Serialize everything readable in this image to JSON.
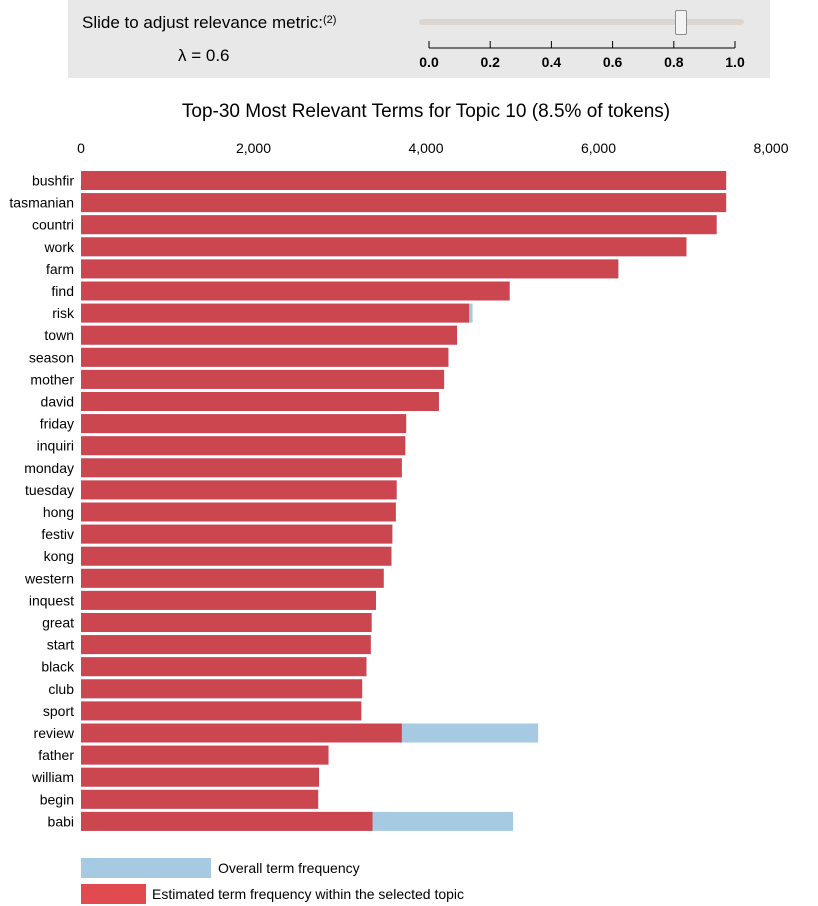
{
  "slider": {
    "label": "Slide to adjust relevance metric:",
    "footnote": "(2)",
    "lambda_text": "λ = 0.6",
    "value": 0.6,
    "min": 0.0,
    "max": 1.0,
    "ticks": [
      "0.0",
      "0.2",
      "0.4",
      "0.6",
      "0.8",
      "1.0"
    ]
  },
  "legend": {
    "overall": "Overall term frequency",
    "topic": "Estimated term frequency within the selected topic"
  },
  "colors": {
    "overall": "#a6cae2",
    "topic": "#cc4650",
    "slider_bg": "#e8e8e8"
  },
  "chart_data": {
    "type": "bar",
    "orientation": "horizontal",
    "stacked": "overlay",
    "title": "Top-30 Most Relevant Terms for Topic 10 (8.5% of tokens)",
    "xlim": [
      0,
      8000
    ],
    "xticks": [
      0,
      2000,
      4000,
      6000,
      8000
    ],
    "xtick_labels": [
      "0",
      "2,000",
      "4,000",
      "6,000",
      "8,000"
    ],
    "categories": [
      "bushfir",
      "tasmanian",
      "countri",
      "work",
      "farm",
      "find",
      "risk",
      "town",
      "season",
      "mother",
      "david",
      "friday",
      "inquiri",
      "monday",
      "tuesday",
      "hong",
      "festiv",
      "kong",
      "western",
      "inquest",
      "great",
      "start",
      "black",
      "club",
      "sport",
      "review",
      "father",
      "william",
      "begin",
      "babi"
    ],
    "series": [
      {
        "name": "Overall term frequency",
        "values": [
          7480,
          7480,
          7370,
          7020,
          6230,
          4970,
          4540,
          4360,
          4260,
          4210,
          4150,
          3770,
          3760,
          3720,
          3660,
          3650,
          3610,
          3600,
          3510,
          3420,
          3370,
          3360,
          3310,
          3260,
          3250,
          5300,
          2870,
          2760,
          2750,
          5010
        ]
      },
      {
        "name": "Estimated term frequency within the selected topic",
        "values": [
          7480,
          7480,
          7370,
          7020,
          6230,
          4970,
          4500,
          4360,
          4260,
          4210,
          4150,
          3770,
          3760,
          3720,
          3660,
          3650,
          3610,
          3600,
          3510,
          3420,
          3370,
          3360,
          3310,
          3260,
          3250,
          3720,
          2870,
          2760,
          2750,
          3380
        ]
      }
    ]
  }
}
